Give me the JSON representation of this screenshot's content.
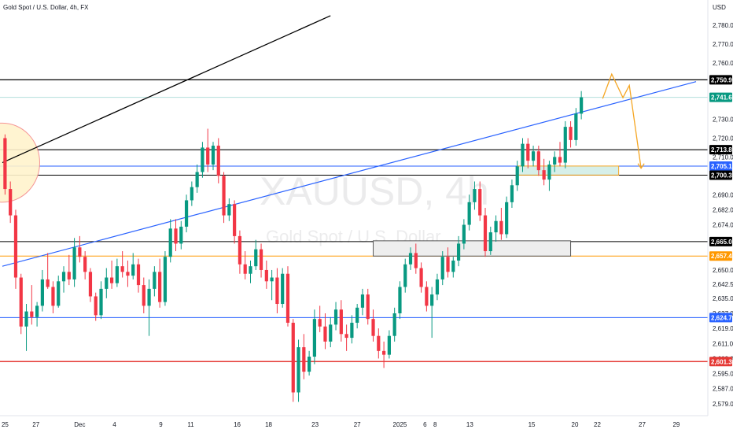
{
  "title": "Gold Spot / U.S. Dollar, 4h, FX",
  "currency": "USD",
  "watermark": {
    "symbol": "XAUUSD, 4h",
    "name": "Gold Spot / U.S. Dollar"
  },
  "colors": {
    "up": "#089981",
    "down": "#f23645",
    "trend_blue": "#2962ff",
    "black": "#000000",
    "orange": "#f5a623",
    "orange_line": "#ff9800",
    "red_level": "#e53935"
  },
  "chart_data": {
    "type": "candlestick",
    "y_range": [
      2576,
      2790
    ],
    "x_range": [
      0,
      130
    ],
    "y_ticks": [
      {
        "v": 2780.0,
        "label": "2,780.00"
      },
      {
        "v": 2770.0,
        "label": "2,770.00"
      },
      {
        "v": 2760.0,
        "label": "2,760.00"
      },
      {
        "v": 2730.0,
        "label": "2,730.00"
      },
      {
        "v": 2720.0,
        "label": "2,720.00"
      },
      {
        "v": 2710.0,
        "label": "2,710.00"
      },
      {
        "v": 2690.0,
        "label": "2,690.00"
      },
      {
        "v": 2682.0,
        "label": "2,682.00"
      },
      {
        "v": 2674.0,
        "label": "2,674.00"
      },
      {
        "v": 2650.0,
        "label": "2,650.00"
      },
      {
        "v": 2642.5,
        "label": "2,642.50"
      },
      {
        "v": 2635.0,
        "label": "2,635.00"
      },
      {
        "v": 2627.0,
        "label": "2,627.00"
      },
      {
        "v": 2619.0,
        "label": "2,619.00"
      },
      {
        "v": 2611.0,
        "label": "2,611.00"
      },
      {
        "v": 2603.0,
        "label": "2,603.00"
      },
      {
        "v": 2595.0,
        "label": "2,595.00"
      },
      {
        "v": 2587.0,
        "label": "2,587.00"
      },
      {
        "v": 2579.0,
        "label": "2,579.00"
      }
    ],
    "x_ticks": [
      {
        "x": 0.5,
        "label": "25"
      },
      {
        "x": 6.3,
        "label": "27"
      },
      {
        "x": 14.5,
        "label": "Dec"
      },
      {
        "x": 21,
        "label": "4"
      },
      {
        "x": 29.7,
        "label": "9"
      },
      {
        "x": 35.3,
        "label": "11"
      },
      {
        "x": 44,
        "label": "16"
      },
      {
        "x": 49.9,
        "label": "18"
      },
      {
        "x": 58.6,
        "label": "23"
      },
      {
        "x": 66.5,
        "label": "27"
      },
      {
        "x": 74.5,
        "label": "2025"
      },
      {
        "x": 79.2,
        "label": "6"
      },
      {
        "x": 81.1,
        "label": "8"
      },
      {
        "x": 87.6,
        "label": "13"
      },
      {
        "x": 99.2,
        "label": "15"
      },
      {
        "x": 107.3,
        "label": "20"
      },
      {
        "x": 111.5,
        "label": "22"
      },
      {
        "x": 119.9,
        "label": "27"
      },
      {
        "x": 126.3,
        "label": "29"
      }
    ],
    "price_badges": [
      {
        "v": 2750.96,
        "label": "2,750.96",
        "bg": "#000000"
      },
      {
        "v": 2741.67,
        "label": "2,741.67",
        "bg": "#089981"
      },
      {
        "v": 2713.86,
        "label": "2,713.86",
        "bg": "#000000"
      },
      {
        "v": 2705.17,
        "label": "2,705.17",
        "bg": "#2962ff"
      },
      {
        "v": 2700.36,
        "label": "2,700.36",
        "bg": "#000000"
      },
      {
        "v": 2665.06,
        "label": "2,665.06",
        "bg": "#000000"
      },
      {
        "v": 2657.4,
        "label": "2,657.40",
        "bg": "#ff9800"
      },
      {
        "v": 2624.73,
        "label": "2,624.73",
        "bg": "#2962ff"
      },
      {
        "v": 2601.39,
        "label": "2,601.39",
        "bg": "#e53935"
      }
    ],
    "horizontal_levels": [
      {
        "v": 2750.96,
        "color": "#000000",
        "width": 1.2
      },
      {
        "v": 2741.67,
        "color": "#b2dfdb",
        "width": 1
      },
      {
        "v": 2713.86,
        "color": "#000000",
        "width": 1.2
      },
      {
        "v": 2705.17,
        "color": "#2962ff",
        "width": 1
      },
      {
        "v": 2700.36,
        "color": "#000000",
        "width": 1
      },
      {
        "v": 2665.06,
        "color": "#000000",
        "width": 1
      },
      {
        "v": 2657.4,
        "color": "#ff9800",
        "width": 1
      },
      {
        "v": 2624.73,
        "color": "#2962ff",
        "width": 1
      },
      {
        "v": 2601.39,
        "color": "#e53935",
        "width": 1.5
      }
    ],
    "trendlines": [
      {
        "x1": 0,
        "y1": 2652.0,
        "x2": 130,
        "y2": 2750.0,
        "color": "#2962ff",
        "width": 1.2
      },
      {
        "x1": 0,
        "y1": 2707.0,
        "x2": 61.5,
        "y2": 2785.0,
        "color": "#000000",
        "width": 1.3
      }
    ],
    "zones": [
      {
        "x1": 69.5,
        "x2": 106.5,
        "y1": 2657.4,
        "y2": 2665.5,
        "fill": "#eeeeee",
        "stroke": "#555555"
      },
      {
        "x1": 96.5,
        "x2": 115.5,
        "y1": 2700.4,
        "y2": 2705.2,
        "fill": "#d6efe9",
        "stroke": "#f5a623"
      }
    ],
    "ellipse": {
      "cx": 0,
      "cy": 2707,
      "rx": 7,
      "ry": 21,
      "fill": "#fff3cd",
      "stroke": "#f48a8a"
    },
    "projection": [
      {
        "x": 112.5,
        "y": 2741.0
      },
      {
        "x": 114.2,
        "y": 2754.0
      },
      {
        "x": 116.3,
        "y": 2741.5
      },
      {
        "x": 117.5,
        "y": 2748.0
      },
      {
        "x": 119.7,
        "y": 2704.0
      }
    ],
    "candles": [
      {
        "o": 2720,
        "h": 2722,
        "l": 2690,
        "c": 2693
      },
      {
        "o": 2693,
        "h": 2697,
        "l": 2675,
        "c": 2679
      },
      {
        "o": 2679,
        "h": 2682,
        "l": 2640,
        "c": 2646
      },
      {
        "o": 2646,
        "h": 2648,
        "l": 2616,
        "c": 2620
      },
      {
        "o": 2620,
        "h": 2632,
        "l": 2607,
        "c": 2628
      },
      {
        "o": 2628,
        "h": 2642,
        "l": 2621,
        "c": 2625
      },
      {
        "o": 2625,
        "h": 2633,
        "l": 2620,
        "c": 2631
      },
      {
        "o": 2631,
        "h": 2650,
        "l": 2628,
        "c": 2645
      },
      {
        "o": 2645,
        "h": 2659,
        "l": 2640,
        "c": 2641
      },
      {
        "o": 2641,
        "h": 2644,
        "l": 2627,
        "c": 2631
      },
      {
        "o": 2631,
        "h": 2647,
        "l": 2630,
        "c": 2644
      },
      {
        "o": 2644,
        "h": 2652,
        "l": 2638,
        "c": 2649
      },
      {
        "o": 2649,
        "h": 2658,
        "l": 2642,
        "c": 2645
      },
      {
        "o": 2645,
        "h": 2667,
        "l": 2641,
        "c": 2662
      },
      {
        "o": 2662,
        "h": 2668,
        "l": 2654,
        "c": 2657
      },
      {
        "o": 2657,
        "h": 2660,
        "l": 2645,
        "c": 2649
      },
      {
        "o": 2649,
        "h": 2651,
        "l": 2633,
        "c": 2636
      },
      {
        "o": 2636,
        "h": 2638,
        "l": 2623,
        "c": 2626
      },
      {
        "o": 2626,
        "h": 2644,
        "l": 2624,
        "c": 2640
      },
      {
        "o": 2640,
        "h": 2651,
        "l": 2635,
        "c": 2646
      },
      {
        "o": 2646,
        "h": 2655,
        "l": 2640,
        "c": 2643
      },
      {
        "o": 2643,
        "h": 2656,
        "l": 2641,
        "c": 2652
      },
      {
        "o": 2652,
        "h": 2660,
        "l": 2646,
        "c": 2649
      },
      {
        "o": 2649,
        "h": 2655,
        "l": 2641,
        "c": 2647
      },
      {
        "o": 2647,
        "h": 2659,
        "l": 2645,
        "c": 2653
      },
      {
        "o": 2653,
        "h": 2656,
        "l": 2638,
        "c": 2642
      },
      {
        "o": 2642,
        "h": 2646,
        "l": 2627,
        "c": 2631
      },
      {
        "o": 2631,
        "h": 2645,
        "l": 2615,
        "c": 2640
      },
      {
        "o": 2640,
        "h": 2652,
        "l": 2636,
        "c": 2649
      },
      {
        "o": 2649,
        "h": 2656,
        "l": 2630,
        "c": 2633
      },
      {
        "o": 2633,
        "h": 2660,
        "l": 2631,
        "c": 2657
      },
      {
        "o": 2657,
        "h": 2677,
        "l": 2654,
        "c": 2672
      },
      {
        "o": 2672,
        "h": 2677,
        "l": 2660,
        "c": 2664
      },
      {
        "o": 2664,
        "h": 2676,
        "l": 2661,
        "c": 2673
      },
      {
        "o": 2673,
        "h": 2690,
        "l": 2670,
        "c": 2687
      },
      {
        "o": 2687,
        "h": 2697,
        "l": 2684,
        "c": 2694
      },
      {
        "o": 2694,
        "h": 2706,
        "l": 2691,
        "c": 2702
      },
      {
        "o": 2702,
        "h": 2718,
        "l": 2699,
        "c": 2715
      },
      {
        "o": 2715,
        "h": 2725,
        "l": 2702,
        "c": 2706
      },
      {
        "o": 2706,
        "h": 2718,
        "l": 2703,
        "c": 2716
      },
      {
        "o": 2716,
        "h": 2720,
        "l": 2696,
        "c": 2700
      },
      {
        "o": 2700,
        "h": 2702,
        "l": 2675,
        "c": 2679
      },
      {
        "o": 2679,
        "h": 2688,
        "l": 2676,
        "c": 2685
      },
      {
        "o": 2685,
        "h": 2687,
        "l": 2664,
        "c": 2668
      },
      {
        "o": 2668,
        "h": 2671,
        "l": 2648,
        "c": 2653
      },
      {
        "o": 2653,
        "h": 2660,
        "l": 2645,
        "c": 2648
      },
      {
        "o": 2648,
        "h": 2655,
        "l": 2643,
        "c": 2652
      },
      {
        "o": 2652,
        "h": 2666,
        "l": 2650,
        "c": 2661
      },
      {
        "o": 2661,
        "h": 2664,
        "l": 2646,
        "c": 2650
      },
      {
        "o": 2650,
        "h": 2655,
        "l": 2640,
        "c": 2644
      },
      {
        "o": 2644,
        "h": 2650,
        "l": 2634,
        "c": 2646
      },
      {
        "o": 2646,
        "h": 2651,
        "l": 2627,
        "c": 2632
      },
      {
        "o": 2632,
        "h": 2651,
        "l": 2630,
        "c": 2648
      },
      {
        "o": 2648,
        "h": 2652,
        "l": 2620,
        "c": 2622
      },
      {
        "o": 2622,
        "h": 2624,
        "l": 2580,
        "c": 2585
      },
      {
        "o": 2585,
        "h": 2613,
        "l": 2580,
        "c": 2609
      },
      {
        "o": 2609,
        "h": 2616,
        "l": 2592,
        "c": 2596
      },
      {
        "o": 2596,
        "h": 2607,
        "l": 2594,
        "c": 2604
      },
      {
        "o": 2604,
        "h": 2629,
        "l": 2600,
        "c": 2624
      },
      {
        "o": 2624,
        "h": 2631,
        "l": 2617,
        "c": 2620
      },
      {
        "o": 2620,
        "h": 2627,
        "l": 2608,
        "c": 2612
      },
      {
        "o": 2612,
        "h": 2625,
        "l": 2609,
        "c": 2621
      },
      {
        "o": 2621,
        "h": 2633,
        "l": 2618,
        "c": 2629
      },
      {
        "o": 2629,
        "h": 2634,
        "l": 2612,
        "c": 2616
      },
      {
        "o": 2616,
        "h": 2621,
        "l": 2607,
        "c": 2614
      },
      {
        "o": 2614,
        "h": 2626,
        "l": 2611,
        "c": 2622
      },
      {
        "o": 2622,
        "h": 2632,
        "l": 2619,
        "c": 2630
      },
      {
        "o": 2630,
        "h": 2640,
        "l": 2626,
        "c": 2637
      },
      {
        "o": 2637,
        "h": 2640,
        "l": 2621,
        "c": 2624
      },
      {
        "o": 2624,
        "h": 2629,
        "l": 2612,
        "c": 2615
      },
      {
        "o": 2615,
        "h": 2619,
        "l": 2603,
        "c": 2607
      },
      {
        "o": 2607,
        "h": 2612,
        "l": 2598,
        "c": 2605
      },
      {
        "o": 2605,
        "h": 2618,
        "l": 2603,
        "c": 2615
      },
      {
        "o": 2615,
        "h": 2630,
        "l": 2612,
        "c": 2627
      },
      {
        "o": 2627,
        "h": 2644,
        "l": 2624,
        "c": 2641
      },
      {
        "o": 2641,
        "h": 2656,
        "l": 2638,
        "c": 2653
      },
      {
        "o": 2653,
        "h": 2662,
        "l": 2650,
        "c": 2659
      },
      {
        "o": 2659,
        "h": 2664,
        "l": 2648,
        "c": 2651
      },
      {
        "o": 2651,
        "h": 2654,
        "l": 2638,
        "c": 2641
      },
      {
        "o": 2641,
        "h": 2644,
        "l": 2628,
        "c": 2631
      },
      {
        "o": 2631,
        "h": 2641,
        "l": 2614,
        "c": 2637
      },
      {
        "o": 2637,
        "h": 2648,
        "l": 2634,
        "c": 2645
      },
      {
        "o": 2645,
        "h": 2660,
        "l": 2642,
        "c": 2657
      },
      {
        "o": 2657,
        "h": 2662,
        "l": 2646,
        "c": 2649
      },
      {
        "o": 2649,
        "h": 2657,
        "l": 2646,
        "c": 2655
      },
      {
        "o": 2655,
        "h": 2668,
        "l": 2652,
        "c": 2664
      },
      {
        "o": 2664,
        "h": 2677,
        "l": 2661,
        "c": 2674
      },
      {
        "o": 2674,
        "h": 2690,
        "l": 2671,
        "c": 2686
      },
      {
        "o": 2686,
        "h": 2697,
        "l": 2682,
        "c": 2693
      },
      {
        "o": 2693,
        "h": 2697,
        "l": 2676,
        "c": 2679
      },
      {
        "o": 2679,
        "h": 2683,
        "l": 2657,
        "c": 2660
      },
      {
        "o": 2660,
        "h": 2673,
        "l": 2658,
        "c": 2670
      },
      {
        "o": 2670,
        "h": 2679,
        "l": 2665,
        "c": 2676
      },
      {
        "o": 2676,
        "h": 2683,
        "l": 2666,
        "c": 2669
      },
      {
        "o": 2669,
        "h": 2689,
        "l": 2667,
        "c": 2686
      },
      {
        "o": 2686,
        "h": 2698,
        "l": 2683,
        "c": 2695
      },
      {
        "o": 2695,
        "h": 2708,
        "l": 2692,
        "c": 2705
      },
      {
        "o": 2705,
        "h": 2720,
        "l": 2702,
        "c": 2717
      },
      {
        "o": 2717,
        "h": 2720,
        "l": 2704,
        "c": 2708
      },
      {
        "o": 2708,
        "h": 2716,
        "l": 2705,
        "c": 2713
      },
      {
        "o": 2713,
        "h": 2716,
        "l": 2700,
        "c": 2703
      },
      {
        "o": 2703,
        "h": 2709,
        "l": 2695,
        "c": 2698
      },
      {
        "o": 2698,
        "h": 2708,
        "l": 2692,
        "c": 2706
      },
      {
        "o": 2706,
        "h": 2713,
        "l": 2702,
        "c": 2710
      },
      {
        "o": 2710,
        "h": 2718,
        "l": 2705,
        "c": 2707
      },
      {
        "o": 2707,
        "h": 2729,
        "l": 2704,
        "c": 2726
      },
      {
        "o": 2726,
        "h": 2729,
        "l": 2715,
        "c": 2719
      },
      {
        "o": 2719,
        "h": 2736,
        "l": 2716,
        "c": 2733
      },
      {
        "o": 2733,
        "h": 2745,
        "l": 2730,
        "c": 2741.67
      }
    ]
  }
}
